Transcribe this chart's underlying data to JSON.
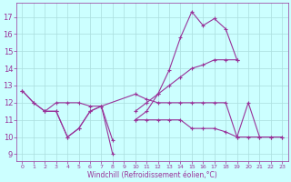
{
  "bg_color": "#ccffff",
  "line_color": "#993399",
  "grid_color": "#aadddd",
  "xlabel": "Windchill (Refroidissement éolien,°C)",
  "xlabel_color": "#993399",
  "tick_color": "#993399",
  "ylim": [
    8.6,
    17.8
  ],
  "xlim": [
    -0.5,
    23.5
  ],
  "yticks": [
    9,
    10,
    11,
    12,
    13,
    14,
    15,
    16,
    17
  ],
  "xticks": [
    0,
    1,
    2,
    3,
    4,
    5,
    6,
    7,
    8,
    9,
    10,
    11,
    12,
    13,
    14,
    15,
    16,
    17,
    18,
    19,
    20,
    21,
    22,
    23
  ],
  "lines": [
    {
      "x": [
        0,
        1,
        2,
        3,
        4,
        5,
        6,
        7,
        8
      ],
      "y": [
        12.7,
        12.0,
        11.5,
        11.5,
        10.0,
        10.5,
        11.5,
        11.8,
        9.0
      ]
    },
    {
      "x": [
        2,
        3,
        4,
        5,
        6,
        7,
        8
      ],
      "y": [
        11.5,
        11.5,
        10.0,
        10.5,
        11.5,
        11.8,
        9.8
      ]
    },
    {
      "x": [
        0,
        1,
        2,
        3,
        4,
        5,
        6,
        7,
        10,
        11,
        12,
        13,
        14,
        15,
        16,
        17,
        18,
        19,
        20,
        21,
        22,
        23
      ],
      "y": [
        12.7,
        12.0,
        11.5,
        12.0,
        12.0,
        12.0,
        11.8,
        11.8,
        12.5,
        12.2,
        12.0,
        12.0,
        12.0,
        12.0,
        12.0,
        12.0,
        12.0,
        10.0,
        12.0,
        10.0,
        10.0,
        10.0
      ]
    },
    {
      "x": [
        10,
        11,
        12,
        13,
        14,
        15,
        16,
        17,
        18,
        19
      ],
      "y": [
        11.0,
        11.5,
        12.5,
        13.9,
        15.8,
        17.3,
        16.5,
        16.9,
        16.3,
        14.5
      ]
    },
    {
      "x": [
        10,
        11,
        12,
        13,
        14,
        15,
        16,
        17,
        18,
        19
      ],
      "y": [
        11.5,
        12.0,
        12.5,
        13.0,
        13.5,
        14.0,
        14.2,
        14.5,
        14.5,
        14.5
      ]
    },
    {
      "x": [
        10,
        11,
        12,
        13,
        14,
        15,
        16,
        17,
        18,
        19,
        20,
        21,
        22,
        23
      ],
      "y": [
        11.0,
        11.0,
        11.0,
        11.0,
        11.0,
        10.5,
        10.5,
        10.5,
        10.3,
        10.0,
        10.0,
        10.0,
        10.0,
        10.0
      ]
    }
  ],
  "lw": 0.8,
  "ms": 2.5,
  "mew": 0.8,
  "ytick_fontsize": 6,
  "xtick_fontsize": 4.5,
  "xlabel_fontsize": 5.5
}
